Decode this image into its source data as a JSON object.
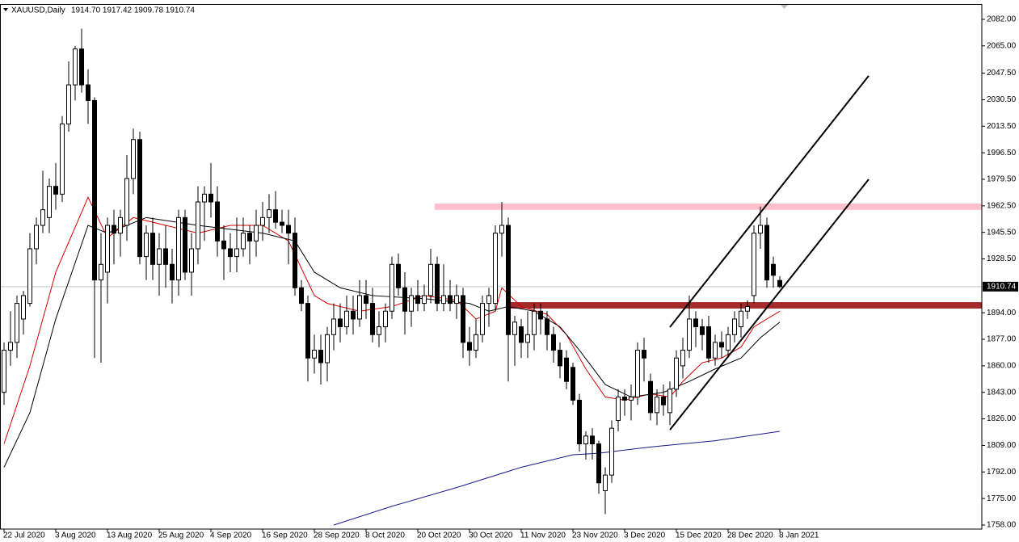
{
  "chart_data": {
    "type": "candlestick",
    "title": "XAUUSD,Daily",
    "quote": "1914.70 1917.42 1909.78 1910.74",
    "categories": [
      "22 Jul 2020",
      null,
      null,
      null,
      null,
      null,
      null,
      null,
      "3 Aug 2020",
      null,
      null,
      null,
      null,
      null,
      null,
      null,
      "13 Aug 2020",
      null,
      null,
      null,
      null,
      null,
      null,
      null,
      "25 Aug 2020",
      null,
      null,
      null,
      null,
      null,
      null,
      null,
      "4 Sep 2020",
      null,
      null,
      null,
      null,
      null,
      null,
      null,
      "16 Sep 2020",
      null,
      null,
      null,
      null,
      null,
      null,
      null,
      "28 Sep 2020",
      null,
      null,
      null,
      null,
      null,
      null,
      null,
      "8 Oct 2020",
      null,
      null,
      null,
      null,
      null,
      null,
      null,
      "20 Oct 2020",
      null,
      null,
      null,
      null,
      null,
      null,
      null,
      "30 Oct 2020",
      null,
      null,
      null,
      null,
      null,
      null,
      null,
      "11 Nov 2020",
      null,
      null,
      null,
      null,
      null,
      null,
      null,
      "23 Nov 2020",
      null,
      null,
      null,
      null,
      null,
      null,
      null,
      "3 Dec 2020",
      null,
      null,
      null,
      null,
      null,
      null,
      null,
      "15 Dec 2020",
      null,
      null,
      null,
      null,
      null,
      null,
      null,
      "28 Dec 2020",
      null,
      null,
      null,
      null,
      null,
      null,
      null,
      "8 Jan 2021"
    ],
    "open": [
      1843,
      1870,
      1875,
      1890,
      1900,
      1935,
      1950,
      1955,
      1975,
      1970,
      2015,
      2040,
      2063,
      2040,
      2030,
      1915,
      1920,
      1950,
      1945,
      1950,
      1980,
      2005,
      1930,
      1945,
      1925,
      1935,
      1925,
      1915,
      1955,
      1920,
      1935,
      1965,
      1970,
      1965,
      1940,
      1935,
      1930,
      1935,
      1945,
      1940,
      1950,
      1955,
      1960,
      1952,
      1950,
      1945,
      1910,
      1900,
      1865,
      1870,
      1862,
      1880,
      1890,
      1885,
      1895,
      1890,
      1905,
      1900,
      1880,
      1885,
      1895,
      1925,
      1910,
      1895,
      1905,
      1900,
      1905,
      1925,
      1900,
      1905,
      1900,
      1905,
      1875,
      1870,
      1880,
      1900,
      1900,
      1945,
      1950,
      1880,
      1885,
      1875,
      1880,
      1895,
      1890,
      1880,
      1870,
      1865,
      1859,
      1838,
      1810,
      1815,
      1810,
      1780,
      1790,
      1825,
      1840,
      1838,
      1840,
      1870,
      1850,
      1830,
      1840,
      1830,
      1845,
      1860,
      1870,
      1890,
      1885,
      1885,
      1865,
      1875,
      1870,
      1880,
      1885,
      1895,
      1905,
      1945,
      1950,
      1925,
      1914.7
    ],
    "high": [
      1875,
      1895,
      1905,
      1908,
      1945,
      1955,
      1985,
      1980,
      1990,
      2020,
      2055,
      2065,
      2076,
      2050,
      2032,
      1945,
      1955,
      1960,
      1960,
      1995,
      2012,
      2010,
      1950,
      1955,
      1945,
      1950,
      1935,
      1960,
      1960,
      1945,
      1975,
      1975,
      1990,
      1975,
      1950,
      1945,
      1955,
      1955,
      1950,
      1960,
      1965,
      1970,
      1972,
      1960,
      1960,
      1955,
      1915,
      1905,
      1880,
      1880,
      1885,
      1900,
      1900,
      1905,
      1905,
      1915,
      1915,
      1910,
      1895,
      1900,
      1930,
      1932,
      1920,
      1910,
      1915,
      1912,
      1935,
      1930,
      1925,
      1915,
      1912,
      1910,
      1885,
      1890,
      1905,
      1910,
      1950,
      1965,
      1955,
      1892,
      1890,
      1895,
      1900,
      1900,
      1895,
      1885,
      1875,
      1870,
      1862,
      1842,
      1818,
      1820,
      1812,
      1795,
      1825,
      1845,
      1845,
      1848,
      1875,
      1878,
      1855,
      1845,
      1848,
      1850,
      1870,
      1878,
      1905,
      1895,
      1890,
      1892,
      1880,
      1882,
      1885,
      1895,
      1900,
      1902,
      1950,
      1962,
      1955,
      1930,
      1917.42
    ],
    "low": [
      1835,
      1860,
      1865,
      1880,
      1898,
      1925,
      1945,
      1945,
      1960,
      1965,
      2010,
      2030,
      2035,
      2015,
      1865,
      1862,
      1900,
      1925,
      1930,
      1940,
      1970,
      1925,
      1915,
      1915,
      1905,
      1910,
      1900,
      1905,
      1915,
      1905,
      1925,
      1940,
      1955,
      1930,
      1915,
      1920,
      1920,
      1930,
      1925,
      1930,
      1940,
      1945,
      1948,
      1945,
      1925,
      1905,
      1895,
      1850,
      1855,
      1848,
      1850,
      1870,
      1875,
      1880,
      1880,
      1885,
      1890,
      1875,
      1872,
      1875,
      1890,
      1905,
      1880,
      1885,
      1895,
      1895,
      1900,
      1895,
      1895,
      1895,
      1890,
      1865,
      1860,
      1865,
      1875,
      1885,
      1895,
      1930,
      1850,
      1860,
      1865,
      1865,
      1870,
      1880,
      1870,
      1862,
      1852,
      1845,
      1835,
      1805,
      1800,
      1800,
      1778,
      1765,
      1785,
      1818,
      1828,
      1825,
      1835,
      1850,
      1825,
      1822,
      1828,
      1822,
      1840,
      1852,
      1865,
      1872,
      1870,
      1862,
      1860,
      1865,
      1865,
      1875,
      1878,
      1890,
      1900,
      1935,
      1910,
      1910,
      1909.78
    ],
    "close": [
      1870,
      1875,
      1900,
      1905,
      1935,
      1950,
      1960,
      1975,
      1970,
      2015,
      2040,
      2063,
      2040,
      2030,
      1915,
      1925,
      1950,
      1945,
      1955,
      1980,
      2005,
      1930,
      1945,
      1925,
      1935,
      1925,
      1915,
      1955,
      1920,
      1935,
      1965,
      1970,
      1965,
      1940,
      1935,
      1930,
      1935,
      1945,
      1940,
      1950,
      1955,
      1960,
      1952,
      1950,
      1945,
      1910,
      1900,
      1865,
      1870,
      1862,
      1880,
      1890,
      1885,
      1895,
      1890,
      1905,
      1900,
      1880,
      1885,
      1895,
      1925,
      1910,
      1895,
      1905,
      1900,
      1905,
      1925,
      1900,
      1905,
      1900,
      1905,
      1875,
      1870,
      1880,
      1900,
      1905,
      1945,
      1950,
      1880,
      1888,
      1875,
      1880,
      1895,
      1890,
      1880,
      1870,
      1860,
      1850,
      1838,
      1810,
      1815,
      1810,
      1785,
      1790,
      1820,
      1840,
      1838,
      1840,
      1870,
      1865,
      1830,
      1840,
      1835,
      1845,
      1865,
      1870,
      1890,
      1885,
      1880,
      1865,
      1875,
      1872,
      1880,
      1890,
      1895,
      1898,
      1945,
      1950,
      1915,
      1918,
      1910.74
    ],
    "lines": [
      {
        "color": "#d40000",
        "x": [
          0,
          4,
          8,
          13,
          16,
          20,
          25,
          30,
          35,
          40,
          44,
          48,
          50,
          55,
          60,
          65,
          70,
          73,
          76,
          77,
          80,
          84,
          87,
          90,
          93,
          96,
          100,
          103,
          105,
          108,
          111,
          114,
          116,
          120
        ],
        "values": [
          1810,
          1860,
          1920,
          1968,
          1942,
          1955,
          1950,
          1945,
          1950,
          1950,
          1940,
          1905,
          1900,
          1895,
          1898,
          1905,
          1902,
          1890,
          1895,
          1910,
          1898,
          1893,
          1880,
          1858,
          1840,
          1838,
          1842,
          1840,
          1850,
          1862,
          1865,
          1872,
          1885,
          1895
        ]
      },
      {
        "color": "#000000",
        "x": [
          0,
          4,
          8,
          13,
          16,
          22,
          30,
          40,
          45,
          48,
          52,
          57,
          65,
          72,
          75,
          78,
          82,
          86,
          89,
          93,
          97,
          102,
          106,
          110,
          114,
          117,
          120
        ],
        "values": [
          1795,
          1830,
          1890,
          1950,
          1945,
          1955,
          1950,
          1945,
          1940,
          1920,
          1910,
          1905,
          1903,
          1900,
          1895,
          1898,
          1895,
          1885,
          1870,
          1848,
          1840,
          1843,
          1850,
          1858,
          1865,
          1878,
          1888
        ]
      },
      {
        "color": "#1a1a8c",
        "x": [
          51,
          60,
          70,
          80,
          88,
          92,
          100,
          110,
          120
        ],
        "values": [
          1758,
          1770,
          1782,
          1795,
          1803,
          1804,
          1808,
          1812,
          1818
        ]
      }
    ],
    "zones": [
      {
        "x": 66.6,
        "low": 1959.9,
        "high": 1964,
        "color": "#ffc0cb"
      },
      {
        "x": 77.9,
        "low": 1896.7,
        "high": 1900.8,
        "color": "#a52a2a"
      }
    ],
    "trendlines": [
      {
        "color": "#000000",
        "x": [
          103,
          133.75
        ],
        "values": [
          1884.8,
          2045.8
        ]
      },
      {
        "color": "#000000",
        "x": [
          103,
          133.75
        ],
        "values": [
          1819,
          1979.5
        ]
      }
    ],
    "last_price": 1910.74,
    "ylim": [
      1755.4,
      2091.8
    ],
    "yticks": [
      {
        "value": 2082,
        "label": "2082.00"
      },
      {
        "value": 2065,
        "label": "2065.00"
      },
      {
        "value": 2047.5,
        "label": "2047.50"
      },
      {
        "value": 2030.5,
        "label": "2030.50"
      },
      {
        "value": 2013.5,
        "label": "2013.50"
      },
      {
        "value": 1996.5,
        "label": "1996.50"
      },
      {
        "value": 1979.5,
        "label": "1979.50"
      },
      {
        "value": 1962.5,
        "label": "1962.50"
      },
      {
        "value": 1945.5,
        "label": "1945.50"
      },
      {
        "value": 1928.5,
        "label": "1928.50"
      },
      {
        "value": 1894,
        "label": "1894.00"
      },
      {
        "value": 1877,
        "label": "1877.00"
      },
      {
        "value": 1860,
        "label": "1860.00"
      },
      {
        "value": 1843,
        "label": "1843.00"
      },
      {
        "value": 1826,
        "label": "1826.00"
      },
      {
        "value": 1809,
        "label": "1809.00"
      },
      {
        "value": 1792,
        "label": "1792.00"
      },
      {
        "value": 1775,
        "label": "1775.00"
      },
      {
        "value": 1758,
        "label": "1758.00"
      }
    ],
    "grid": false
  }
}
